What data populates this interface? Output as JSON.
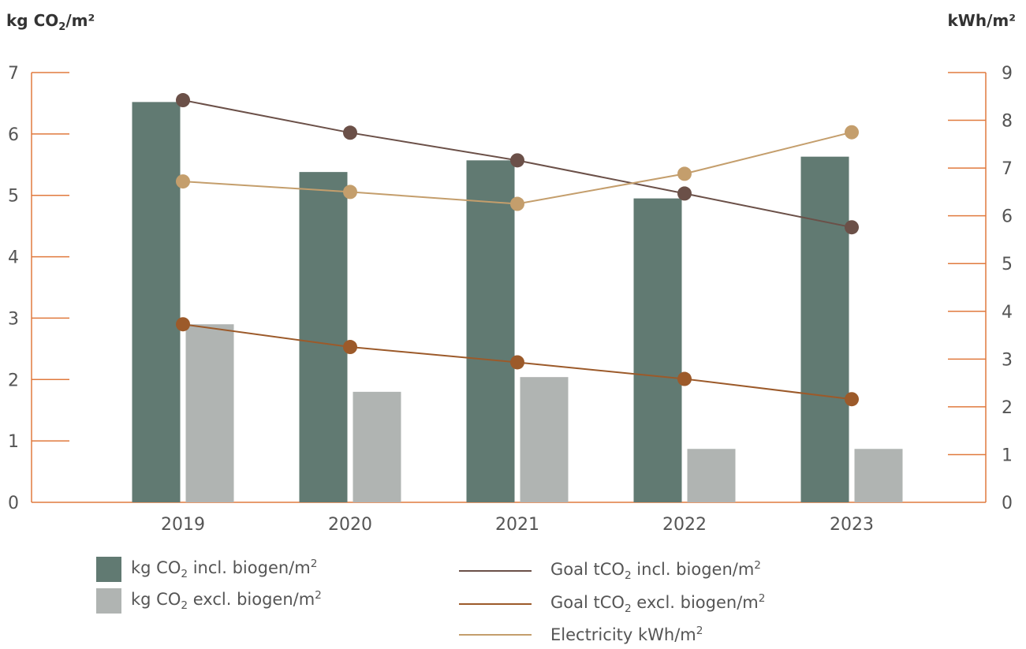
{
  "chart_data": {
    "type": "bar",
    "left_axis_title": "kg CO",
    "left_axis_title_sub": "2",
    "left_axis_title_end": "/m²",
    "right_axis_title": "kWh/m²",
    "categories": [
      "2019",
      "2020",
      "2021",
      "2022",
      "2023"
    ],
    "left_ylim": [
      0,
      7
    ],
    "right_ylim": [
      0,
      9
    ],
    "left_ticks": [
      "0",
      "1",
      "2",
      "3",
      "4",
      "5",
      "6",
      "7"
    ],
    "right_ticks": [
      "0",
      "1",
      "2",
      "3",
      "4",
      "5",
      "6",
      "7",
      "8",
      "9"
    ],
    "bar_series": [
      {
        "key": "incl",
        "name": "kg CO₂ incl. biogen/m²",
        "color": "#617a72",
        "axis": "left",
        "values": [
          6.52,
          5.38,
          5.57,
          4.95,
          5.63
        ]
      },
      {
        "key": "excl",
        "name": "kg CO₂ excl. biogen/m²",
        "color": "#b0b4b2",
        "axis": "left",
        "values": [
          2.9,
          1.8,
          2.04,
          0.87,
          0.87
        ]
      }
    ],
    "line_series": [
      {
        "key": "goal_incl",
        "name": "Goal tCO₂ incl. biogen/m²",
        "color": "#6b5048",
        "axis": "left",
        "values": [
          6.55,
          6.02,
          5.57,
          5.03,
          4.48
        ]
      },
      {
        "key": "goal_excl",
        "name": "Goal tCO₂ excl. biogen/m²",
        "color": "#9c5a2a",
        "axis": "left",
        "values": [
          2.9,
          2.53,
          2.28,
          2.01,
          1.68
        ]
      },
      {
        "key": "elec",
        "name": "Electricity kWh/m²",
        "color": "#c49e6c",
        "axis": "right",
        "values": [
          6.72,
          6.5,
          6.25,
          6.88,
          7.75
        ]
      }
    ],
    "axis_color": "#e07a3e",
    "grid": false
  },
  "legend": {
    "incl_label": "kg CO",
    "incl_sub": "2",
    "incl_rest": " incl. biogen/m",
    "incl_sup": "2",
    "excl_label": "kg CO",
    "excl_sub": "2",
    "excl_rest": " excl. biogen/m",
    "excl_sup": "2",
    "goal_incl_label": "Goal tCO",
    "goal_incl_sub": "2",
    "goal_incl_rest": " incl. biogen/m",
    "goal_incl_sup": "2",
    "goal_excl_label": "Goal tCO",
    "goal_excl_sub": "2",
    "goal_excl_rest": " excl. biogen/m",
    "goal_excl_sup": "2",
    "elec_label": "Electricity kWh/m",
    "elec_sup": "2"
  }
}
